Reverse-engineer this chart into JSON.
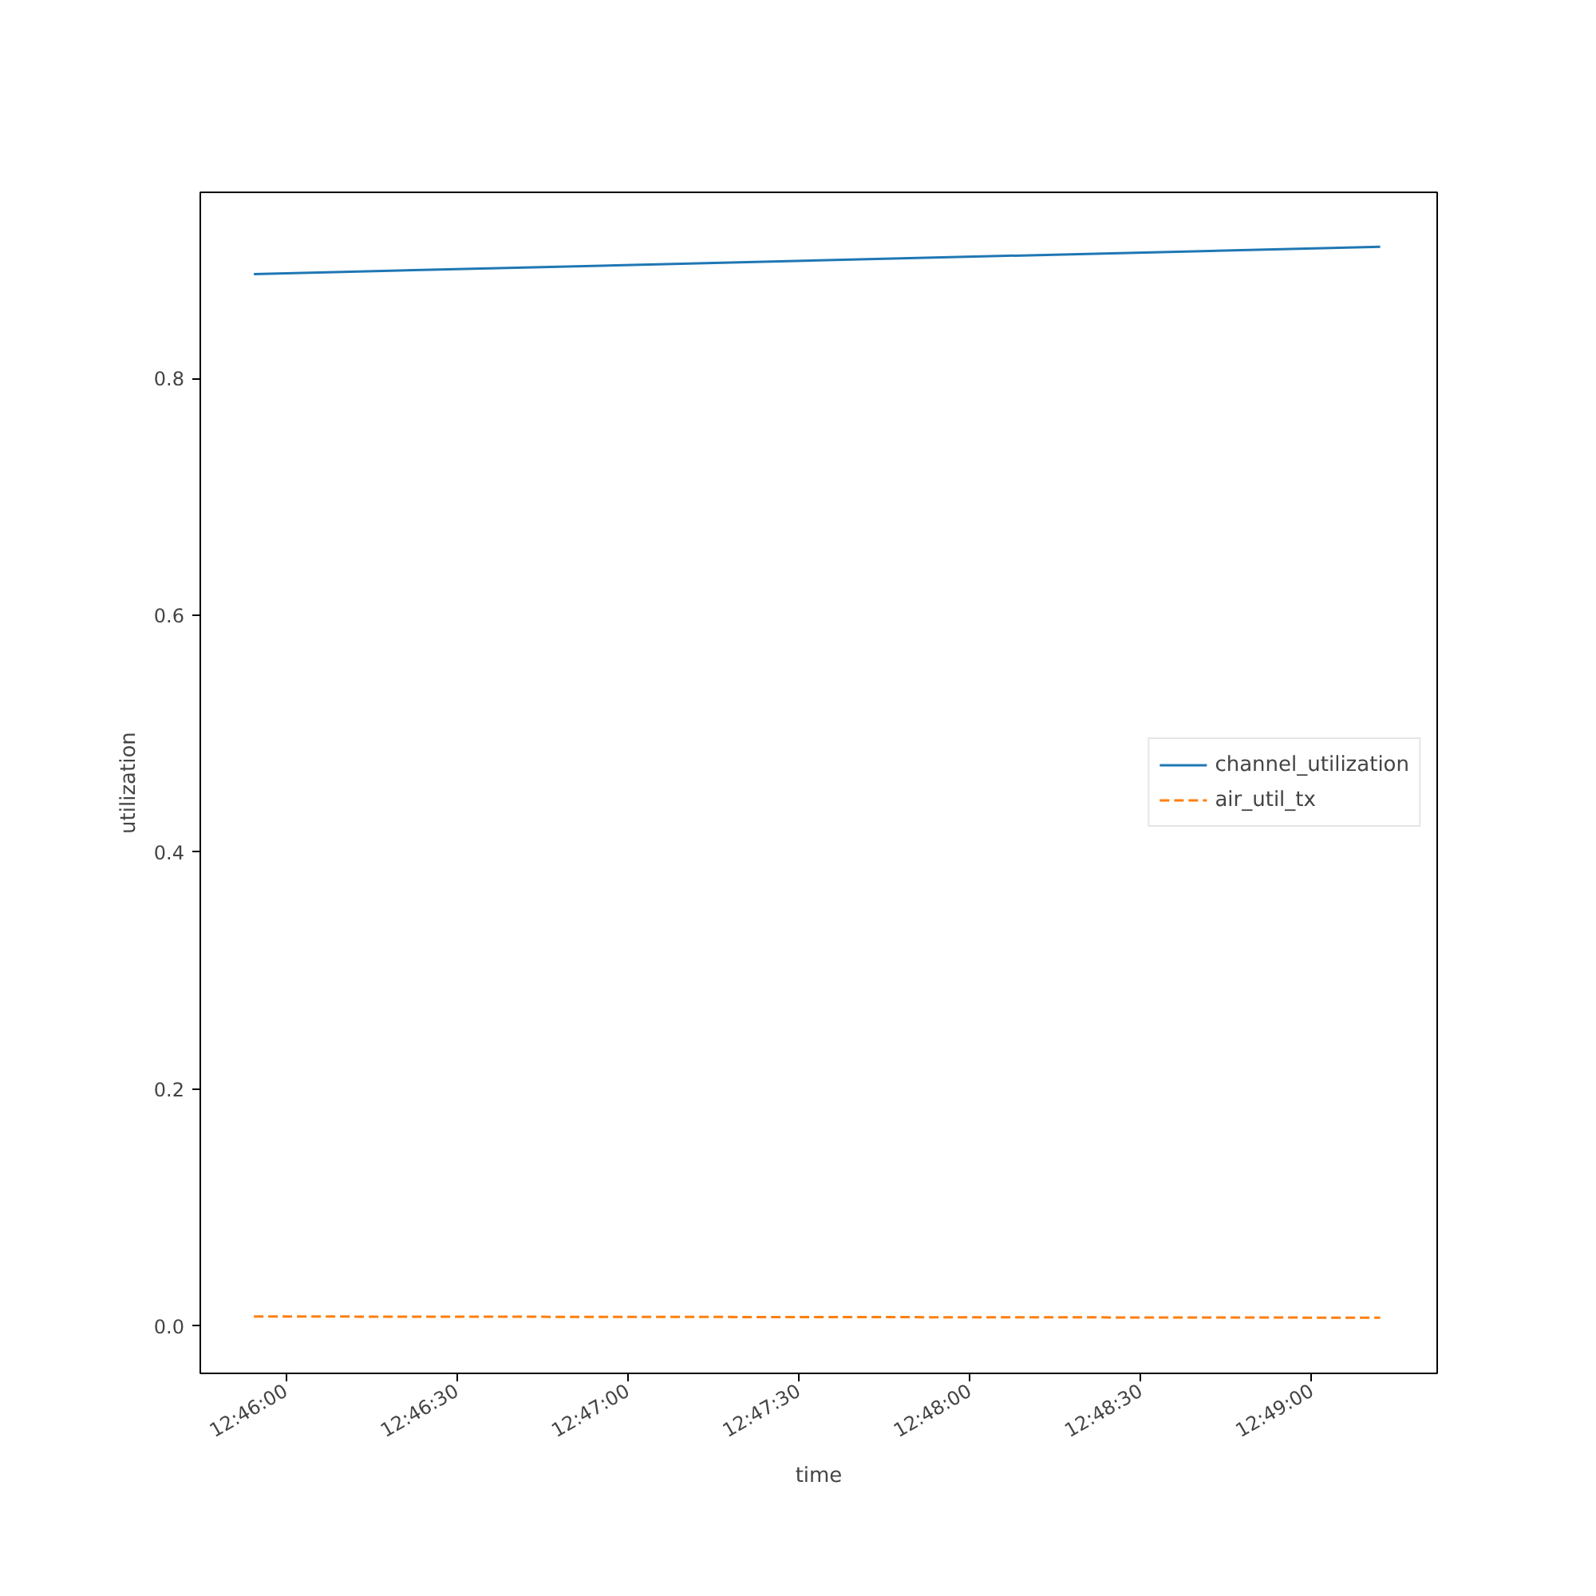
{
  "chart_data": {
    "type": "line",
    "xlabel": "time",
    "ylabel": "utilization",
    "xlim": [
      12.7625,
      12.822778
    ],
    "ylim": [
      -0.04,
      0.957
    ],
    "xticks": [
      {
        "value": 12.766667,
        "label": "12:46:00"
      },
      {
        "value": 12.775,
        "label": "12:46:30"
      },
      {
        "value": 12.783333,
        "label": "12:47:00"
      },
      {
        "value": 12.791667,
        "label": "12:47:30"
      },
      {
        "value": 12.8,
        "label": "12:48:00"
      },
      {
        "value": 12.808333,
        "label": "12:48:30"
      },
      {
        "value": 12.816667,
        "label": "12:49:00"
      }
    ],
    "yticks": [
      {
        "value": 0,
        "label": "0.0"
      },
      {
        "value": 0.2,
        "label": "0.2"
      },
      {
        "value": 0.4,
        "label": "0.4"
      },
      {
        "value": 0.6,
        "label": "0.6"
      },
      {
        "value": 0.8,
        "label": "0.8"
      }
    ],
    "x": [
      12.765111,
      12.82
    ],
    "series": [
      {
        "name": "channel_utilization",
        "color": "#1f77b4",
        "values": [
          0.888,
          0.911
        ],
        "line_style": "solid"
      },
      {
        "name": "air_util_tx",
        "color": "#ff7f0e",
        "values": [
          0.008,
          0.007
        ],
        "line_style": "dashed"
      }
    ],
    "legend": "right",
    "grid": false,
    "marker": "none"
  }
}
